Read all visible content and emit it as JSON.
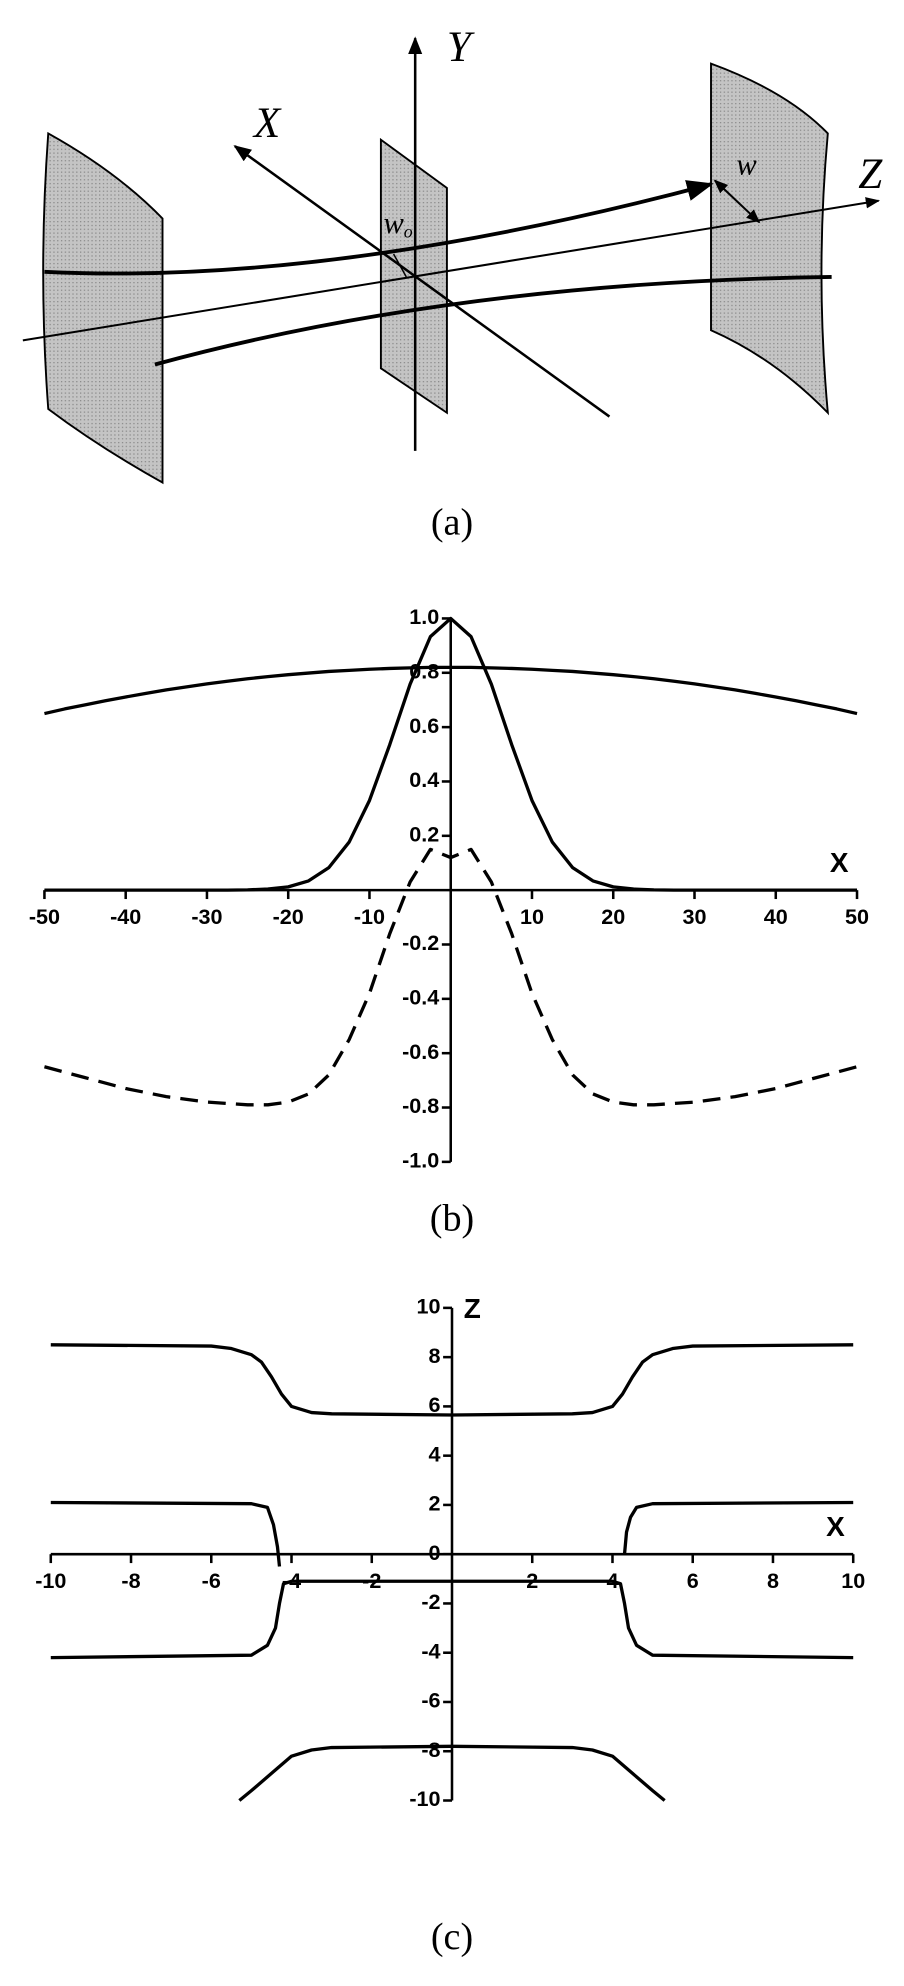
{
  "diagram": {
    "x_label": "X",
    "y_label": "Y",
    "z_label": "Z",
    "w_label": "w",
    "w0_label": {
      "base": "w",
      "sub": "o"
    },
    "caption": "(a)"
  },
  "chart_data": [
    {
      "type": "line",
      "caption": "(b)",
      "xlabel": "X",
      "x": [
        -50,
        -47.5,
        -45,
        -42.5,
        -40,
        -37.5,
        -35,
        -32.5,
        -30,
        -27.5,
        -25,
        -22.5,
        -20,
        -17.5,
        -15,
        -12.5,
        -10,
        -7.5,
        -5,
        -2.5,
        0,
        2.5,
        5,
        7.5,
        10,
        12.5,
        15,
        17.5,
        20,
        22.5,
        25,
        27.5,
        30,
        32.5,
        35,
        37.5,
        40,
        42.5,
        45,
        47.5,
        50
      ],
      "series": [
        {
          "color": "#000000",
          "linestyle": "solid",
          "values": [
            0,
            0,
            0,
            0,
            0,
            0,
            0,
            0,
            0,
            0,
            0.001,
            0.004,
            0.012,
            0.034,
            0.083,
            0.177,
            0.33,
            0.536,
            0.758,
            0.933,
            1,
            0.933,
            0.758,
            0.536,
            0.33,
            0.177,
            0.083,
            0.034,
            0.012,
            0.004,
            0.001,
            0,
            0,
            0,
            0,
            0,
            0,
            0,
            0,
            0,
            0
          ]
        },
        {
          "color": "#000000",
          "linestyle": "solid",
          "values": [
            0.65,
            0.667,
            0.682,
            0.697,
            0.711,
            0.724,
            0.737,
            0.748,
            0.759,
            0.769,
            0.778,
            0.786,
            0.793,
            0.799,
            0.805,
            0.809,
            0.813,
            0.816,
            0.818,
            0.82,
            0.82,
            0.82,
            0.818,
            0.816,
            0.813,
            0.809,
            0.805,
            0.799,
            0.793,
            0.786,
            0.778,
            0.769,
            0.759,
            0.748,
            0.737,
            0.724,
            0.711,
            0.697,
            0.682,
            0.667,
            0.65
          ]
        },
        {
          "color": "#000000",
          "linestyle": "dashed",
          "values": [
            -0.65,
            -0.67,
            -0.69,
            -0.71,
            -0.73,
            -0.745,
            -0.76,
            -0.77,
            -0.78,
            -0.785,
            -0.79,
            -0.79,
            -0.78,
            -0.75,
            -0.68,
            -0.55,
            -0.38,
            -0.16,
            0.03,
            0.15,
            0.12,
            0.15,
            0.03,
            -0.16,
            -0.38,
            -0.55,
            -0.68,
            -0.75,
            -0.78,
            -0.79,
            -0.79,
            -0.785,
            -0.78,
            -0.77,
            -0.76,
            -0.745,
            -0.73,
            -0.71,
            -0.69,
            -0.67,
            -0.65
          ]
        }
      ],
      "xlim": [
        -50,
        50
      ],
      "xticks": [
        -50,
        -40,
        -30,
        -20,
        -10,
        10,
        20,
        30,
        40,
        50
      ],
      "ylim": [
        -1,
        1
      ],
      "yticks": [
        {
          "value": -1,
          "label": "-1.0"
        },
        -0.8,
        -0.6,
        -0.4,
        -0.2,
        0.2,
        0.4,
        0.6,
        0.8,
        {
          "value": 1,
          "label": "1.0"
        }
      ]
    },
    {
      "type": "line",
      "caption": "(c)",
      "xlabel": "X",
      "ylabel": "Z",
      "series": [
        {
          "color": "#000000",
          "linestyle": "solid",
          "x": [
            -10,
            -6,
            -5.5,
            -5,
            -4.75,
            -4.5,
            -4.25,
            -4,
            -3.5,
            -3,
            0,
            3,
            3.5,
            4,
            4.25,
            4.5,
            4.75,
            5,
            5.5,
            6,
            10
          ],
          "values": [
            8.5,
            8.45,
            8.35,
            8.1,
            7.8,
            7.2,
            6.5,
            6,
            5.75,
            5.7,
            5.65,
            5.7,
            5.75,
            6,
            6.5,
            7.2,
            7.8,
            8.1,
            8.35,
            8.45,
            8.5
          ]
        },
        {
          "color": "#000000",
          "linestyle": "solid",
          "x": [
            -10,
            -5,
            -4.6,
            -4.45,
            -4.35,
            -4.3
          ],
          "values": [
            2.1,
            2.05,
            1.9,
            1.2,
            0.3,
            -0.5
          ]
        },
        {
          "color": "#000000",
          "linestyle": "solid",
          "x": [
            4.3,
            4.35,
            4.45,
            4.6,
            5,
            10
          ],
          "values": [
            0,
            0.9,
            1.5,
            1.9,
            2.05,
            2.1
          ]
        },
        {
          "color": "#000000",
          "linestyle": "solid",
          "x": [
            -10,
            -5,
            -4.6,
            -4.4,
            -4.3,
            -4.2,
            -4,
            0,
            4,
            4.2,
            4.3,
            4.4,
            4.6,
            5,
            10
          ],
          "values": [
            -4.2,
            -4.1,
            -3.7,
            -3,
            -2,
            -1.2,
            -1.1,
            -1.1,
            -1.1,
            -1.2,
            -2,
            -3,
            -3.7,
            -4.1,
            -4.2
          ]
        },
        {
          "color": "#000000",
          "linestyle": "solid",
          "x": [
            -5.3,
            -5,
            -4.5,
            -4,
            -3.5,
            -3,
            0,
            3,
            3.5,
            4,
            4.5,
            5,
            5.3
          ],
          "values": [
            -10,
            -9.6,
            -8.9,
            -8.2,
            -7.95,
            -7.85,
            -7.8,
            -7.85,
            -7.95,
            -8.2,
            -8.9,
            -9.6,
            -10
          ]
        }
      ],
      "xlim": [
        -10,
        10
      ],
      "xticks": [
        -10,
        -8,
        -6,
        -4,
        -2,
        2,
        4,
        6,
        8,
        10
      ],
      "ylim": [
        -10,
        10
      ],
      "yticks": [
        -10,
        -8,
        -6,
        -4,
        -2,
        0,
        2,
        4,
        6,
        8,
        10
      ]
    }
  ]
}
